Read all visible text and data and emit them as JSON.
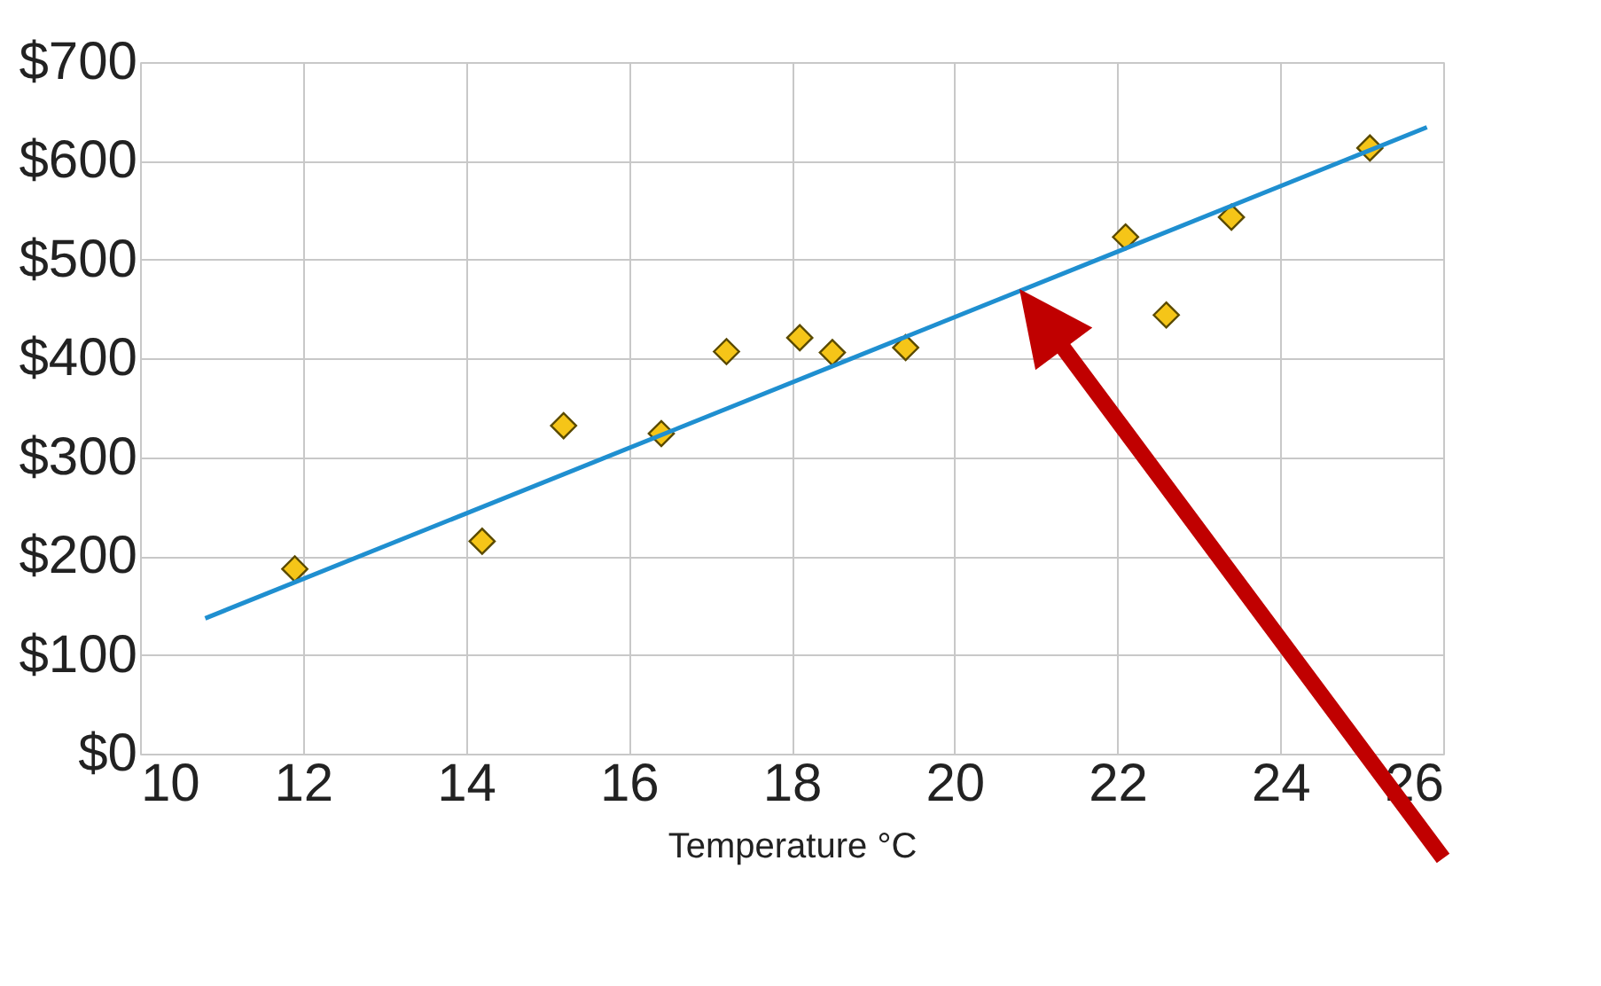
{
  "chart_data": {
    "type": "scatter",
    "xlabel": "Temperature °C",
    "grid": true,
    "xlim": [
      10,
      26
    ],
    "xticks": [
      10,
      12,
      14,
      16,
      18,
      20,
      22,
      24,
      26
    ],
    "ylim": [
      0,
      700
    ],
    "yticks": [
      {
        "value": 0,
        "label": "$0"
      },
      {
        "value": 100,
        "label": "$100"
      },
      {
        "value": 200,
        "label": "$200"
      },
      {
        "value": 300,
        "label": "$300"
      },
      {
        "value": 400,
        "label": "$400"
      },
      {
        "value": 500,
        "label": "$500"
      },
      {
        "value": 600,
        "label": "$600"
      },
      {
        "value": 700,
        "label": "$700"
      }
    ],
    "series": [
      {
        "marker": "diamond",
        "color": "#f5c518",
        "x": [
          11.9,
          14.2,
          15.2,
          16.4,
          17.2,
          18.1,
          18.5,
          19.4,
          22.1,
          22.6,
          23.4,
          25.1
        ],
        "values": [
          187,
          215,
          332,
          324,
          407,
          421,
          406,
          411,
          523,
          444,
          543,
          613
        ]
      },
      {
        "type": "line",
        "color": "#1f8fd0",
        "x": [
          10.8,
          25.8
        ],
        "values": [
          137,
          634
        ]
      }
    ]
  }
}
